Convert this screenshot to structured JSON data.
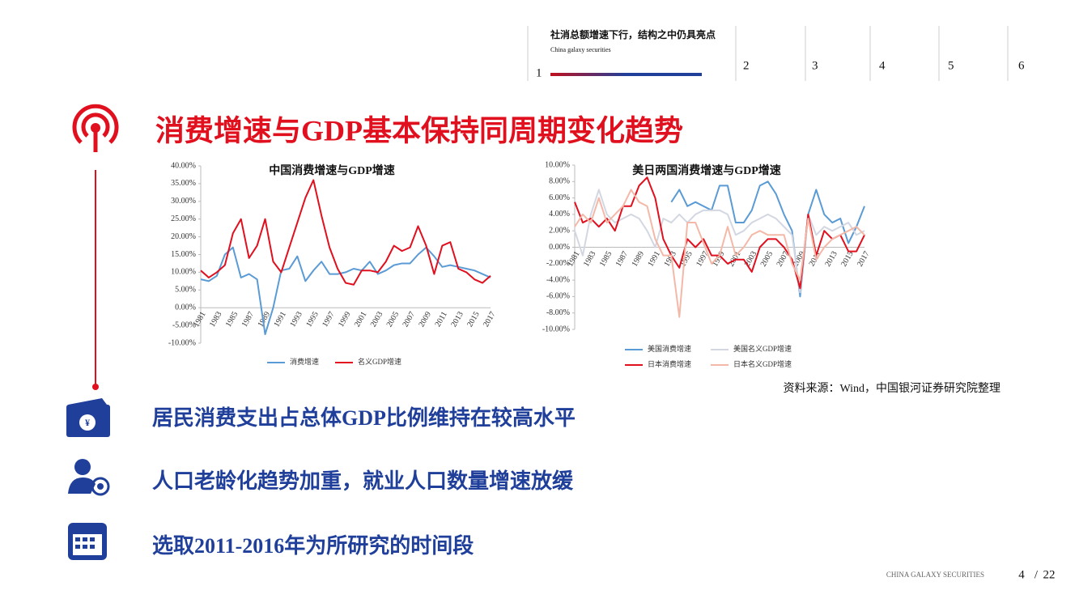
{
  "nav": {
    "active_title": "社消总额增速下行，结构之中仍具亮点",
    "active_subtitle": "China galaxy securities",
    "items": [
      "1",
      "2",
      "3",
      "4",
      "5",
      "6"
    ]
  },
  "title": "消费增速与GDP基本保持同周期变化趋势",
  "chart_data": [
    {
      "type": "line",
      "title": "中国消费增速与GDP增速",
      "categories": [
        "1981",
        null,
        "1983",
        null,
        "1985",
        null,
        "1987",
        null,
        "1989",
        null,
        "1991",
        null,
        "1993",
        null,
        "1995",
        null,
        "1997",
        null,
        "1999",
        null,
        "2001",
        null,
        "2003",
        null,
        "2005",
        null,
        "2007",
        null,
        "2009",
        null,
        "2011",
        null,
        "2013",
        null,
        "2015",
        null,
        "2017"
      ],
      "series": [
        {
          "name": "消费增速",
          "color": "#5b9bd5",
          "values": [
            8,
            7.5,
            9,
            15,
            17,
            8.5,
            9.5,
            8,
            -7.5,
            0,
            10.5,
            11,
            14.5,
            7.5,
            10.5,
            13,
            9.5,
            9.5,
            10,
            11,
            10.5,
            13,
            9.5,
            10.5,
            12,
            12.5,
            12.5,
            15,
            17,
            14.5,
            11.5,
            12,
            11.5,
            11,
            10.5,
            9.5,
            8.5
          ]
        },
        {
          "name": "名义GDP增速",
          "color": "#e0101e",
          "values": [
            10.5,
            8.5,
            10,
            12,
            21,
            25,
            14,
            17.5,
            25,
            13,
            10,
            17,
            24,
            31,
            36,
            26,
            17,
            11,
            7,
            6.5,
            10.5,
            10.5,
            10,
            13,
            17.5,
            16,
            17,
            23,
            17.5,
            9.5,
            17.5,
            18.5,
            11,
            10,
            8,
            7,
            9
          ]
        }
      ],
      "ylim": [
        -10,
        40
      ],
      "yticks": [
        {
          "value": -10,
          "label": "-10.00%"
        },
        {
          "value": -5,
          "label": "-5.00%"
        },
        {
          "value": 0,
          "label": "0.00%"
        },
        {
          "value": 5,
          "label": "5.00%"
        },
        {
          "value": 10,
          "label": "10.00%"
        },
        {
          "value": 15,
          "label": "15.00%"
        },
        {
          "value": 20,
          "label": "20.00%"
        },
        {
          "value": 25,
          "label": "25.00%"
        },
        {
          "value": 30,
          "label": "30.00%"
        },
        {
          "value": 35,
          "label": "35.00%"
        },
        {
          "value": 40,
          "label": "40.00%"
        }
      ],
      "grid": false,
      "legend": "bottom"
    },
    {
      "type": "line",
      "title": "美日两国消费增速与GDP增速",
      "categories": [
        "1981",
        null,
        "1983",
        null,
        "1985",
        null,
        "1987",
        null,
        "1989",
        null,
        "1991",
        null,
        "1993",
        null,
        "1995",
        null,
        "1997",
        null,
        "1999",
        null,
        "2001",
        null,
        "2003",
        null,
        "2005",
        null,
        "2007",
        null,
        "2009",
        null,
        "2011",
        null,
        "2013",
        null,
        "2015",
        null,
        "2017"
      ],
      "series": [
        {
          "name": "美国消费增速",
          "color": "#5b9bd5",
          "values": [
            null,
            null,
            null,
            null,
            null,
            null,
            null,
            null,
            null,
            null,
            null,
            null,
            5.5,
            7,
            5,
            5.5,
            5,
            4.5,
            7.5,
            7.5,
            3,
            3,
            4.5,
            7.5,
            8,
            6.5,
            4,
            2,
            -6,
            4,
            7,
            4,
            3,
            3.5,
            0.5,
            2.5,
            5
          ]
        },
        {
          "name": "美国名义GDP增速",
          "color": "#d3d7e2",
          "values": [
            2,
            -1,
            4,
            7,
            4,
            3,
            3.5,
            4,
            3.5,
            2,
            0,
            3.5,
            3,
            4,
            3,
            4,
            4.5,
            4.5,
            4.5,
            4,
            1.5,
            2,
            3,
            3.5,
            4,
            3.5,
            2.5,
            1.5,
            -5.5,
            4,
            1.5,
            2.5,
            2,
            2.5,
            3,
            1.5,
            2
          ]
        },
        {
          "name": "日本消费增速",
          "color": "#e0101e",
          "values": [
            5.5,
            3,
            3.5,
            2.5,
            3.5,
            2,
            5,
            5,
            7.5,
            8.5,
            6,
            1,
            -1,
            -2.5,
            1,
            0,
            1,
            -1,
            -1,
            -2,
            -1.5,
            -1.5,
            -3,
            0,
            1,
            1,
            0,
            -1.5,
            -5,
            4,
            -1,
            2,
            1,
            1.5,
            -0.5,
            -0.5,
            1.5
          ]
        },
        {
          "name": "日本名义GDP增速",
          "color": "#f4b8a8",
          "values": [
            2.5,
            4,
            3,
            6,
            3,
            4,
            5,
            7,
            5.5,
            5,
            1,
            -1,
            -1,
            -8.5,
            3,
            3,
            0.5,
            -2,
            -1,
            2.5,
            -1,
            0,
            1.5,
            2,
            1.5,
            1.5,
            1.5,
            -2,
            -4,
            3.5,
            -1.5,
            0,
            1,
            1.5,
            2,
            2.5,
            1.5
          ]
        }
      ],
      "ylim": [
        -10,
        10
      ],
      "yticks": [
        {
          "value": -10,
          "label": "-10.00%"
        },
        {
          "value": -8,
          "label": "-8.00%"
        },
        {
          "value": -6,
          "label": "-6.00%"
        },
        {
          "value": -4,
          "label": "-4.00%"
        },
        {
          "value": -2,
          "label": "-2.00%"
        },
        {
          "value": 0,
          "label": "0.00%"
        },
        {
          "value": 2,
          "label": "2.00%"
        },
        {
          "value": 4,
          "label": "4.00%"
        },
        {
          "value": 6,
          "label": "6.00%"
        },
        {
          "value": 8,
          "label": "8.00%"
        },
        {
          "value": 10,
          "label": "10.00%"
        }
      ],
      "grid": false,
      "legend": "bottom"
    }
  ],
  "bullets": [
    "居民消费支出占总体GDP比例维持在较高水平",
    "人口老龄化趋势加重，就业人口数量增速放缓",
    "选取2011-2016年为所研究的时间段"
  ],
  "source": "资料来源：Wind，中国银河证券研究院整理",
  "footer": {
    "company": "CHINA GALAXY SECURITIES",
    "page": "4",
    "separator": "/",
    "total": "22"
  }
}
